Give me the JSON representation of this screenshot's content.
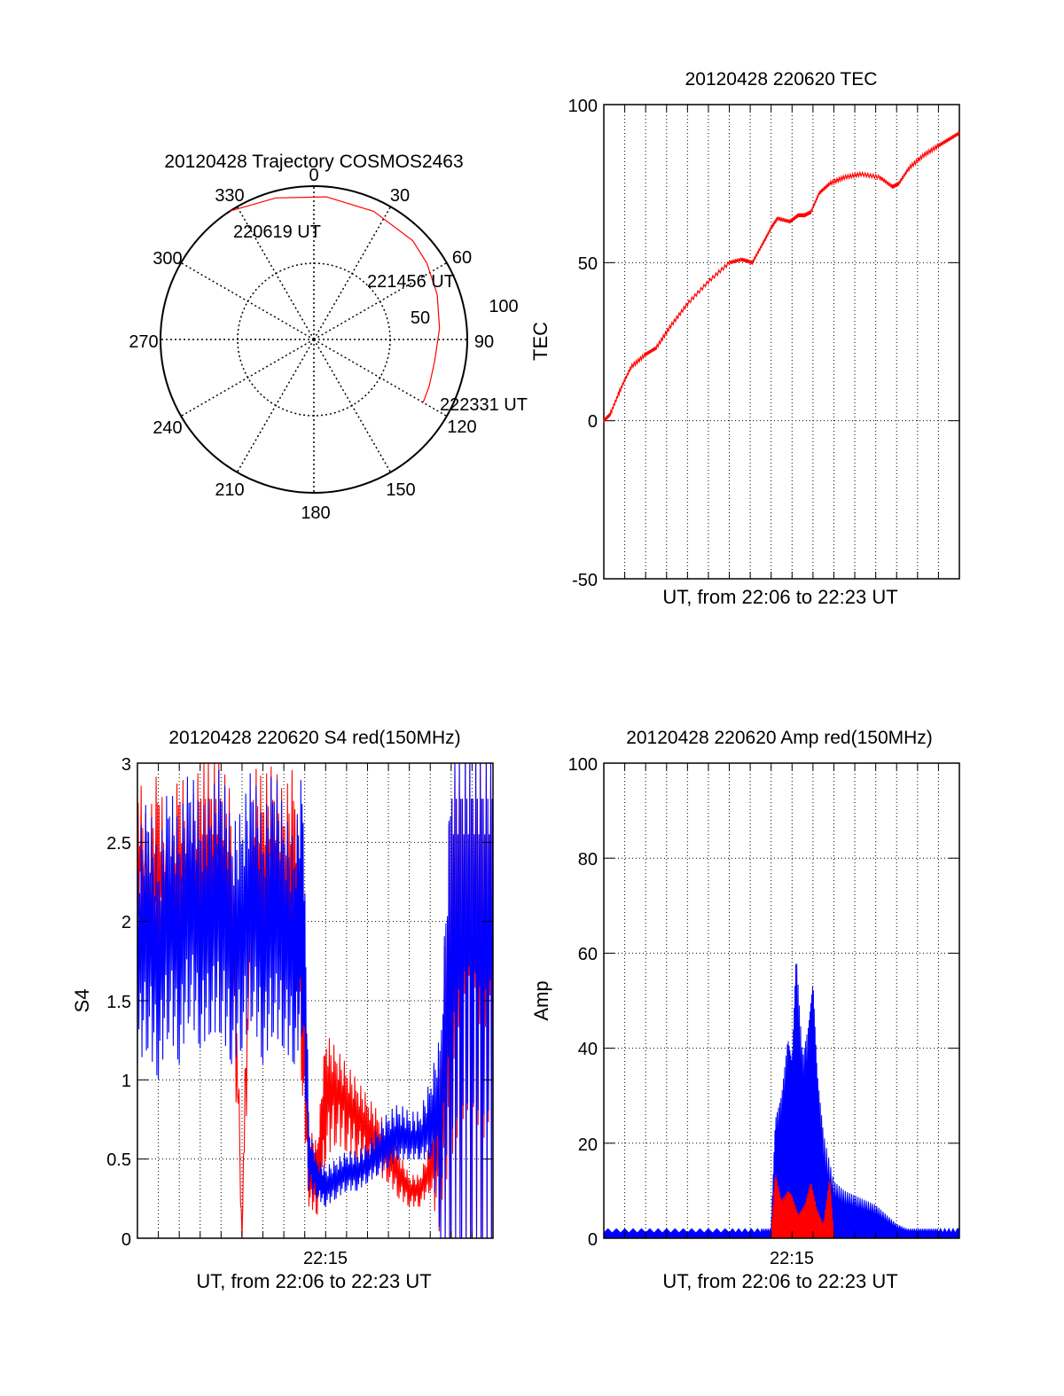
{
  "colors": {
    "red": "#ff0000",
    "blue": "#0000ff",
    "axis": "#000000",
    "grid": "#000000"
  },
  "chart_data": [
    {
      "id": "polar",
      "type": "scatter",
      "subtype": "polar-trajectory",
      "title": "20120428 Trajectory COSMOS2463",
      "azimuth_labels": [
        "0",
        "30",
        "60",
        "90",
        "120",
        "150",
        "180",
        "210",
        "240",
        "270",
        "300",
        "330"
      ],
      "radial_labels": [
        "50",
        "100"
      ],
      "grid": true,
      "series": [
        {
          "color": "#ff0000",
          "points_az_el": [
            [
              327,
              0
            ],
            [
              345,
              4
            ],
            [
              5,
              6
            ],
            [
              25,
              7
            ],
            [
              45,
              8
            ],
            [
              56,
              10
            ],
            [
              70,
              13
            ],
            [
              85,
              16
            ],
            [
              100,
              18
            ],
            [
              112,
              17
            ],
            [
              120,
              16
            ]
          ]
        }
      ],
      "annotations": [
        {
          "text": "220619 UT",
          "az": 332,
          "el": 2
        },
        {
          "text": "221456 UT",
          "az": 60,
          "el": 14
        },
        {
          "text": "222331 UT",
          "az": 118,
          "el": 12
        }
      ]
    },
    {
      "id": "tec",
      "type": "line",
      "title": "20120428 220620 TEC",
      "xlabel": "UT, from 22:06 to 22:23 UT",
      "ylabel": "TEC",
      "xlim": [
        0,
        17
      ],
      "ylim": [
        -50,
        100
      ],
      "yticks": [
        "-50",
        "0",
        "50",
        "100"
      ],
      "grid": true,
      "series": [
        {
          "color": "#ff0000",
          "x": [
            0,
            0.3,
            0.8,
            1.3,
            2.0,
            2.5,
            3.2,
            4.0,
            5.0,
            6.0,
            6.6,
            7.1,
            7.6,
            8.0,
            8.3,
            8.9,
            9.3,
            9.6,
            9.9,
            10.3,
            10.8,
            11.5,
            12.3,
            13.2,
            13.8,
            14.1,
            14.6,
            15.3,
            16.0,
            16.5,
            17.0
          ],
          "y": [
            0,
            2,
            10,
            17,
            21,
            23,
            30,
            37,
            44,
            50,
            51,
            50,
            56,
            61,
            64,
            63,
            65,
            65,
            66,
            72,
            75,
            77,
            78,
            77,
            74,
            75,
            80,
            84,
            87,
            89,
            91
          ]
        }
      ]
    },
    {
      "id": "s4",
      "type": "line",
      "title": "20120428 220620 S4 red(150MHz)",
      "xlabel": "UT, from 22:06 to 22:23 UT",
      "ylabel": "S4",
      "xlim": [
        0,
        17
      ],
      "ylim": [
        0,
        3
      ],
      "xticks": [
        {
          "value": 8.6,
          "label": "22:15"
        }
      ],
      "yticks": [
        "0",
        "0.5",
        "1",
        "1.5",
        "2",
        "2.5",
        "3"
      ],
      "grid": true,
      "series": [
        {
          "color": "#ff0000",
          "x": [
            0,
            0.5,
            1.0,
            1.5,
            2.0,
            2.5,
            3.0,
            3.5,
            4.0,
            4.5,
            5.0,
            5.5,
            6.0,
            6.5,
            7.0,
            7.5,
            7.9,
            8.2,
            8.6,
            9.0,
            9.5,
            10.0,
            10.5,
            11.0,
            11.5,
            12.0,
            12.5,
            13.0,
            13.5,
            14.0,
            14.5,
            15.0,
            15.5,
            16.0,
            16.5,
            17.0
          ],
          "y": [
            2.5,
            2.9,
            2.2,
            2.8,
            2.4,
            2.9,
            2.0,
            2.6,
            2.9,
            2.2,
            0.8,
            2.7,
            2.3,
            2.9,
            2.1,
            2.5,
            1.5,
            0.4,
            0.3,
            0.9,
            1.0,
            0.9,
            0.8,
            0.7,
            0.6,
            0.5,
            0.4,
            0.3,
            0.3,
            0.4,
            0.6,
            1.5,
            2.2,
            2.6,
            1.8,
            2.5
          ],
          "spike_y": [
            3,
            2.6,
            3,
            2.4,
            3,
            2.7,
            3,
            3,
            3,
            2.8,
            0,
            3,
            2.9,
            3,
            2.8,
            3,
            2.0,
            0.7,
            0.6,
            1.3,
            1.2,
            1.1,
            1.0,
            0.9,
            0.8,
            0.7,
            0.55,
            0.4,
            0.4,
            0.6,
            1.2,
            3,
            3,
            3,
            3,
            3
          ],
          "spike_low": [
            1.8,
            1.5,
            1.6,
            2.0,
            1.5,
            1.9,
            1.4,
            1.7,
            1.6,
            1.5,
            0,
            1.8,
            1.5,
            1.9,
            1.4,
            1.6,
            0.9,
            0.2,
            0.15,
            0.5,
            0.6,
            0.55,
            0.5,
            0.45,
            0.4,
            0.35,
            0.25,
            0.2,
            0.2,
            0.3,
            0,
            0,
            0,
            0,
            0,
            0
          ]
        },
        {
          "color": "#0000ff",
          "x": [
            0,
            0.5,
            1.0,
            1.5,
            2.0,
            2.5,
            3.0,
            3.5,
            4.0,
            4.5,
            5.0,
            5.5,
            6.0,
            6.5,
            7.0,
            7.5,
            7.9,
            8.2,
            8.6,
            9.0,
            9.5,
            10.0,
            10.5,
            11.0,
            11.5,
            12.0,
            12.5,
            13.0,
            13.5,
            14.0,
            14.5,
            15.0,
            15.5,
            16.0,
            16.5,
            17.0
          ],
          "y": [
            1.7,
            1.9,
            1.6,
            2.0,
            1.7,
            2.1,
            1.8,
            1.9,
            2.0,
            1.7,
            1.8,
            2.0,
            1.7,
            1.9,
            1.8,
            1.7,
            1.9,
            0.5,
            0.35,
            0.3,
            0.35,
            0.4,
            0.4,
            0.45,
            0.5,
            0.55,
            0.6,
            0.6,
            0.6,
            0.65,
            1.0,
            2.0,
            2.5,
            2.6,
            2.3,
            2.5
          ],
          "spike_y": [
            2.5,
            2.8,
            2.4,
            2.9,
            2.6,
            3,
            2.7,
            2.8,
            3,
            2.6,
            2.7,
            3,
            2.6,
            3,
            2.7,
            2.5,
            3,
            0.7,
            0.5,
            0.45,
            0.5,
            0.55,
            0.55,
            0.6,
            0.7,
            0.8,
            0.85,
            0.8,
            0.8,
            1.0,
            1.3,
            3,
            3,
            3,
            3,
            3
          ],
          "spike_low": [
            1.1,
            1.2,
            1.0,
            1.3,
            1.1,
            1.4,
            1.2,
            1.3,
            1.3,
            1.1,
            1.2,
            1.4,
            1.1,
            1.3,
            1.2,
            1.1,
            1.3,
            0.3,
            0.25,
            0.2,
            0.25,
            0.3,
            0.3,
            0.35,
            0.4,
            0.45,
            0.5,
            0.5,
            0.5,
            0.5,
            0,
            0,
            0,
            0,
            0,
            0
          ]
        }
      ]
    },
    {
      "id": "amp",
      "type": "area",
      "title": "20120428 220620 Amp red(150MHz)",
      "xlabel": "UT, from 22:06 to 22:23 UT",
      "ylabel": "Amp",
      "xlim": [
        0,
        17
      ],
      "ylim": [
        0,
        100
      ],
      "xticks": [
        {
          "value": 8.6,
          "label": "22:15"
        }
      ],
      "yticks": [
        "0",
        "20",
        "40",
        "60",
        "80",
        "100"
      ],
      "grid": true,
      "series": [
        {
          "color": "#0000ff",
          "x": [
            0,
            2,
            4,
            6,
            7.5,
            8.0,
            8.2,
            8.5,
            8.8,
            9.0,
            9.2,
            9.5,
            9.8,
            10.0,
            10.2,
            10.5,
            11.0,
            11.5,
            12.0,
            12.5,
            13.0,
            13.5,
            14.0,
            14.5,
            15.0,
            15.5,
            16.0,
            17.0
          ],
          "y": [
            2,
            2,
            2,
            2,
            2,
            2,
            25,
            30,
            42,
            37,
            60,
            38,
            45,
            54,
            35,
            22,
            12,
            10,
            9,
            8,
            7,
            5,
            3,
            2,
            2,
            2,
            2,
            2
          ]
        },
        {
          "color": "#ff0000",
          "x": [
            8.0,
            8.2,
            8.5,
            8.8,
            9.0,
            9.3,
            9.6,
            9.9,
            10.2,
            10.5,
            10.8,
            11.0
          ],
          "y": [
            0,
            14,
            8,
            10,
            9,
            5,
            7,
            12,
            6,
            3,
            13,
            0
          ]
        }
      ]
    }
  ]
}
